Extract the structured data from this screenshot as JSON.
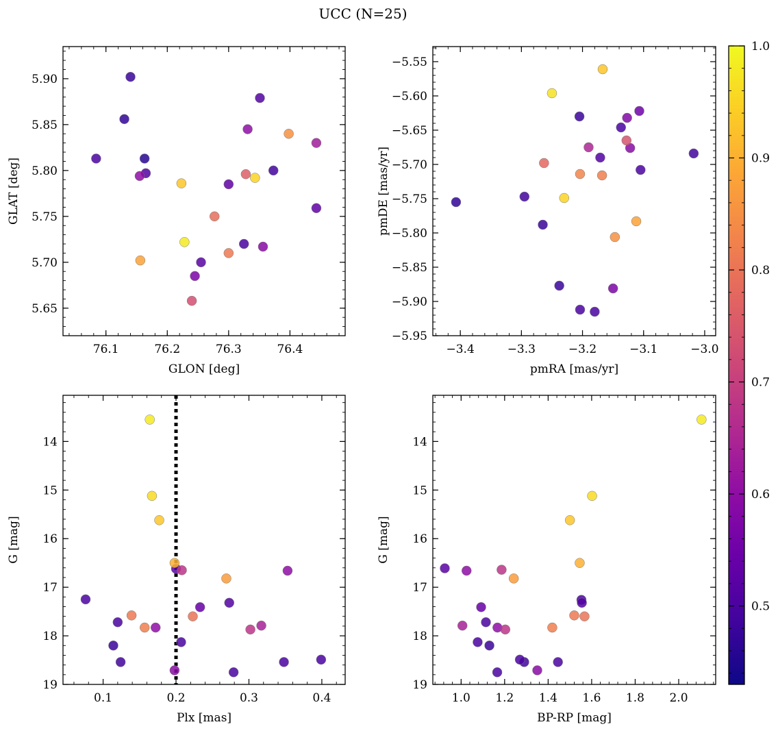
{
  "figure": {
    "title": "UCC (N=25)"
  },
  "colorbar": {
    "min": 0.43,
    "max": 1.0,
    "ticks": [
      0.5,
      0.6,
      0.7,
      0.8,
      0.9,
      1.0
    ],
    "tick_labels": [
      "0.5",
      "0.6",
      "0.7",
      "0.8",
      "0.9",
      "1.0"
    ],
    "colormap": "plasma"
  },
  "chart_data": [
    {
      "type": "scatter",
      "xlabel": "GLON [deg]",
      "ylabel": "GLAT [deg]",
      "xlim": [
        76.03,
        76.49
      ],
      "ylim": [
        5.62,
        5.935
      ],
      "xticks": [
        76.1,
        76.2,
        76.3,
        76.4
      ],
      "xtick_labels": [
        "76.1",
        "76.2",
        "76.3",
        "76.4"
      ],
      "yticks": [
        5.65,
        5.7,
        5.75,
        5.8,
        5.85,
        5.9
      ],
      "ytick_labels": [
        "5.65",
        "5.70",
        "5.75",
        "5.80",
        "5.85",
        "5.90"
      ],
      "points": [
        {
          "x": 76.14,
          "y": 5.902,
          "c": 0.48
        },
        {
          "x": 76.13,
          "y": 5.856,
          "c": 0.47
        },
        {
          "x": 76.084,
          "y": 5.813,
          "c": 0.5
        },
        {
          "x": 76.163,
          "y": 5.813,
          "c": 0.46
        },
        {
          "x": 76.165,
          "y": 5.797,
          "c": 0.51
        },
        {
          "x": 76.155,
          "y": 5.794,
          "c": 0.6
        },
        {
          "x": 76.156,
          "y": 5.702,
          "c": 0.88
        },
        {
          "x": 76.223,
          "y": 5.786,
          "c": 0.93
        },
        {
          "x": 76.228,
          "y": 5.722,
          "c": 0.98
        },
        {
          "x": 76.24,
          "y": 5.658,
          "c": 0.73
        },
        {
          "x": 76.245,
          "y": 5.685,
          "c": 0.57
        },
        {
          "x": 76.255,
          "y": 5.7,
          "c": 0.52
        },
        {
          "x": 76.277,
          "y": 5.75,
          "c": 0.79
        },
        {
          "x": 76.3,
          "y": 5.785,
          "c": 0.53
        },
        {
          "x": 76.3,
          "y": 5.71,
          "c": 0.81
        },
        {
          "x": 76.325,
          "y": 5.72,
          "c": 0.5
        },
        {
          "x": 76.328,
          "y": 5.796,
          "c": 0.76
        },
        {
          "x": 76.331,
          "y": 5.845,
          "c": 0.6
        },
        {
          "x": 76.343,
          "y": 5.792,
          "c": 0.95
        },
        {
          "x": 76.351,
          "y": 5.879,
          "c": 0.51
        },
        {
          "x": 76.356,
          "y": 5.717,
          "c": 0.59
        },
        {
          "x": 76.373,
          "y": 5.8,
          "c": 0.49
        },
        {
          "x": 76.398,
          "y": 5.84,
          "c": 0.85
        },
        {
          "x": 76.443,
          "y": 5.83,
          "c": 0.63
        },
        {
          "x": 76.443,
          "y": 5.759,
          "c": 0.53
        }
      ]
    },
    {
      "type": "scatter",
      "xlabel": "pmRA [mas/yr]",
      "ylabel": "pmDE [mas/yr]",
      "xlim": [
        -3.445,
        -2.982
      ],
      "ylim": [
        -5.95,
        -5.528
      ],
      "xticks": [
        -3.4,
        -3.3,
        -3.2,
        -3.1,
        -3.0
      ],
      "xtick_labels": [
        "−3.4",
        "−3.3",
        "−3.2",
        "−3.1",
        "−3.0"
      ],
      "yticks": [
        -5.95,
        -5.9,
        -5.85,
        -5.8,
        -5.75,
        -5.7,
        -5.65,
        -5.6,
        -5.55
      ],
      "ytick_labels": [
        "−5.95",
        "−5.90",
        "−5.85",
        "−5.80",
        "−5.75",
        "−5.70",
        "−5.65",
        "−5.60",
        "−5.55"
      ],
      "points": [
        {
          "x": -3.167,
          "y": -5.561,
          "c": 0.93
        },
        {
          "x": -3.25,
          "y": -5.596,
          "c": 0.97
        },
        {
          "x": -3.205,
          "y": -5.63,
          "c": 0.48
        },
        {
          "x": -3.107,
          "y": -5.622,
          "c": 0.55
        },
        {
          "x": -3.127,
          "y": -5.632,
          "c": 0.58
        },
        {
          "x": -3.137,
          "y": -5.646,
          "c": 0.5
        },
        {
          "x": -3.128,
          "y": -5.665,
          "c": 0.74
        },
        {
          "x": -3.19,
          "y": -5.675,
          "c": 0.65
        },
        {
          "x": -3.122,
          "y": -5.676,
          "c": 0.59
        },
        {
          "x": -3.171,
          "y": -5.69,
          "c": 0.51
        },
        {
          "x": -3.018,
          "y": -5.684,
          "c": 0.49
        },
        {
          "x": -3.263,
          "y": -5.698,
          "c": 0.78
        },
        {
          "x": -3.105,
          "y": -5.708,
          "c": 0.5
        },
        {
          "x": -3.204,
          "y": -5.714,
          "c": 0.83
        },
        {
          "x": -3.168,
          "y": -5.716,
          "c": 0.82
        },
        {
          "x": -3.23,
          "y": -5.749,
          "c": 0.95
        },
        {
          "x": -3.407,
          "y": -5.755,
          "c": 0.47
        },
        {
          "x": -3.295,
          "y": -5.747,
          "c": 0.49
        },
        {
          "x": -3.112,
          "y": -5.783,
          "c": 0.88
        },
        {
          "x": -3.265,
          "y": -5.788,
          "c": 0.48
        },
        {
          "x": -3.147,
          "y": -5.806,
          "c": 0.85
        },
        {
          "x": -3.238,
          "y": -5.877,
          "c": 0.48
        },
        {
          "x": -3.15,
          "y": -5.881,
          "c": 0.57
        },
        {
          "x": -3.204,
          "y": -5.912,
          "c": 0.5
        },
        {
          "x": -3.18,
          "y": -5.915,
          "c": 0.5
        }
      ]
    },
    {
      "type": "scatter",
      "xlabel": "Plx [mas]",
      "ylabel": "G [mag]",
      "xlim": [
        0.045,
        0.432
      ],
      "ylim": [
        19.0,
        13.05
      ],
      "y_inverted": true,
      "xticks": [
        0.1,
        0.2,
        0.3,
        0.4
      ],
      "xtick_labels": [
        "0.1",
        "0.2",
        "0.3",
        "0.4"
      ],
      "yticks": [
        14,
        15,
        16,
        17,
        18,
        19
      ],
      "ytick_labels": [
        "14",
        "15",
        "16",
        "17",
        "18",
        "19"
      ],
      "vline": {
        "x": 0.2,
        "style": "dotted"
      },
      "points": [
        {
          "x": 0.164,
          "y": 13.55,
          "c": 0.98
        },
        {
          "x": 0.167,
          "y": 15.12,
          "c": 0.96
        },
        {
          "x": 0.177,
          "y": 15.62,
          "c": 0.93
        },
        {
          "x": 0.198,
          "y": 16.5,
          "c": 0.9
        },
        {
          "x": 0.2,
          "y": 16.62,
          "c": 0.52
        },
        {
          "x": 0.208,
          "y": 16.65,
          "c": 0.68
        },
        {
          "x": 0.269,
          "y": 16.82,
          "c": 0.87
        },
        {
          "x": 0.353,
          "y": 16.66,
          "c": 0.6
        },
        {
          "x": 0.076,
          "y": 17.25,
          "c": 0.5
        },
        {
          "x": 0.139,
          "y": 17.58,
          "c": 0.81
        },
        {
          "x": 0.233,
          "y": 17.41,
          "c": 0.54
        },
        {
          "x": 0.273,
          "y": 17.32,
          "c": 0.51
        },
        {
          "x": 0.12,
          "y": 17.72,
          "c": 0.5
        },
        {
          "x": 0.157,
          "y": 17.83,
          "c": 0.82
        },
        {
          "x": 0.172,
          "y": 17.83,
          "c": 0.6
        },
        {
          "x": 0.223,
          "y": 17.6,
          "c": 0.8
        },
        {
          "x": 0.302,
          "y": 17.87,
          "c": 0.68
        },
        {
          "x": 0.317,
          "y": 17.79,
          "c": 0.64
        },
        {
          "x": 0.114,
          "y": 18.2,
          "c": 0.48
        },
        {
          "x": 0.207,
          "y": 18.13,
          "c": 0.5
        },
        {
          "x": 0.124,
          "y": 18.54,
          "c": 0.49
        },
        {
          "x": 0.198,
          "y": 18.71,
          "c": 0.59
        },
        {
          "x": 0.279,
          "y": 18.75,
          "c": 0.5
        },
        {
          "x": 0.348,
          "y": 18.54,
          "c": 0.5
        },
        {
          "x": 0.399,
          "y": 18.49,
          "c": 0.5
        }
      ]
    },
    {
      "type": "scatter",
      "xlabel": "BP-RP [mag]",
      "ylabel": "G [mag]",
      "xlim": [
        0.87,
        2.17
      ],
      "ylim": [
        19.0,
        13.05
      ],
      "y_inverted": true,
      "xticks": [
        1.0,
        1.2,
        1.4,
        1.6,
        1.8,
        2.0
      ],
      "xtick_labels": [
        "1.0",
        "1.2",
        "1.4",
        "1.6",
        "1.8",
        "2.0"
      ],
      "yticks": [
        14,
        15,
        16,
        17,
        18,
        19
      ],
      "ytick_labels": [
        "14",
        "15",
        "16",
        "17",
        "18",
        "19"
      ],
      "points": [
        {
          "x": 2.105,
          "y": 13.55,
          "c": 0.98
        },
        {
          "x": 1.602,
          "y": 15.12,
          "c": 0.96
        },
        {
          "x": 1.5,
          "y": 15.62,
          "c": 0.93
        },
        {
          "x": 1.545,
          "y": 16.5,
          "c": 0.9
        },
        {
          "x": 0.925,
          "y": 16.61,
          "c": 0.52
        },
        {
          "x": 1.025,
          "y": 16.66,
          "c": 0.6
        },
        {
          "x": 1.186,
          "y": 16.64,
          "c": 0.68
        },
        {
          "x": 1.242,
          "y": 16.82,
          "c": 0.87
        },
        {
          "x": 1.553,
          "y": 17.26,
          "c": 0.5
        },
        {
          "x": 1.555,
          "y": 17.32,
          "c": 0.51
        },
        {
          "x": 1.092,
          "y": 17.41,
          "c": 0.54
        },
        {
          "x": 1.114,
          "y": 17.72,
          "c": 0.5
        },
        {
          "x": 1.006,
          "y": 17.79,
          "c": 0.64
        },
        {
          "x": 1.167,
          "y": 17.83,
          "c": 0.6
        },
        {
          "x": 1.203,
          "y": 17.87,
          "c": 0.68
        },
        {
          "x": 1.419,
          "y": 17.83,
          "c": 0.82
        },
        {
          "x": 1.52,
          "y": 17.58,
          "c": 0.81
        },
        {
          "x": 1.567,
          "y": 17.6,
          "c": 0.8
        },
        {
          "x": 1.076,
          "y": 18.13,
          "c": 0.5
        },
        {
          "x": 1.13,
          "y": 18.2,
          "c": 0.48
        },
        {
          "x": 1.27,
          "y": 18.49,
          "c": 0.5
        },
        {
          "x": 1.29,
          "y": 18.54,
          "c": 0.49
        },
        {
          "x": 1.445,
          "y": 18.54,
          "c": 0.5
        },
        {
          "x": 1.166,
          "y": 18.75,
          "c": 0.5
        },
        {
          "x": 1.35,
          "y": 18.71,
          "c": 0.59
        }
      ]
    }
  ]
}
